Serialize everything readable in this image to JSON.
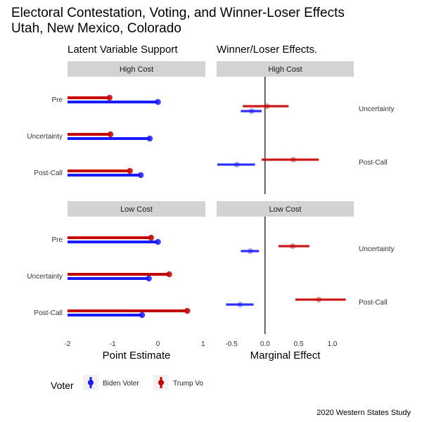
{
  "title": "Electoral Contestation, Voting, and Winner-Loser Effects",
  "subtitle": "Utah, New Mexico, Colorado",
  "caption": "2020 Western States Study",
  "colors": {
    "biden": "#1a1aff",
    "trump": "#c40000",
    "strip": "#d3d3d3",
    "vline": "#000000"
  },
  "legend": {
    "title": "Voter",
    "items": [
      {
        "label": "Biden Voter",
        "color": "#1a1aff"
      },
      {
        "label": "Trump Vo",
        "color": "#c40000"
      }
    ]
  },
  "chart_data": [
    {
      "type": "dot-bar",
      "title": "Latent Variable Support",
      "xlabel": "Point Estimate",
      "xlim": [
        -2,
        1.05
      ],
      "xticks": [
        -2,
        -1,
        0,
        1
      ],
      "bar_origin": -2,
      "categories": [
        "Pre",
        "Uncertainty",
        "Post-Call"
      ],
      "panels": [
        {
          "strip": "High Cost",
          "series": [
            {
              "name": "Trump Voter",
              "values": [
                -1.07,
                -1.05,
                -0.62
              ]
            },
            {
              "name": "Biden Voter",
              "values": [
                0.0,
                -0.18,
                -0.38
              ]
            }
          ]
        },
        {
          "strip": "Low Cost",
          "series": [
            {
              "name": "Trump Voter",
              "values": [
                -0.15,
                0.25,
                0.65
              ]
            },
            {
              "name": "Biden Voter",
              "values": [
                0.0,
                -0.2,
                -0.35
              ]
            }
          ]
        }
      ]
    },
    {
      "type": "coefficient",
      "title": "Winner/Loser Effects.",
      "xlabel": "Marginal Effect",
      "xlim": [
        -0.72,
        1.32
      ],
      "xticks": [
        -0.5,
        0.0,
        0.5,
        1.0
      ],
      "ref_line": 0,
      "categories": [
        "Uncertainty",
        "Post-Call"
      ],
      "panels": [
        {
          "strip": "High Cost",
          "series": [
            {
              "name": "Trump Voter",
              "est": [
                0.03,
                0.42
              ],
              "lo": [
                -0.33,
                -0.05
              ],
              "hi": [
                0.35,
                0.8
              ]
            },
            {
              "name": "Biden Voter",
              "est": [
                -0.2,
                -0.42
              ],
              "lo": [
                -0.36,
                -0.71
              ],
              "hi": [
                -0.05,
                -0.15
              ]
            }
          ]
        },
        {
          "strip": "Low Cost",
          "series": [
            {
              "name": "Trump Voter",
              "est": [
                0.41,
                0.8
              ],
              "lo": [
                0.2,
                0.45
              ],
              "hi": [
                0.66,
                1.2
              ]
            },
            {
              "name": "Biden Voter",
              "est": [
                -0.22,
                -0.37
              ],
              "lo": [
                -0.36,
                -0.58
              ],
              "hi": [
                -0.09,
                -0.17
              ]
            }
          ]
        }
      ]
    }
  ]
}
